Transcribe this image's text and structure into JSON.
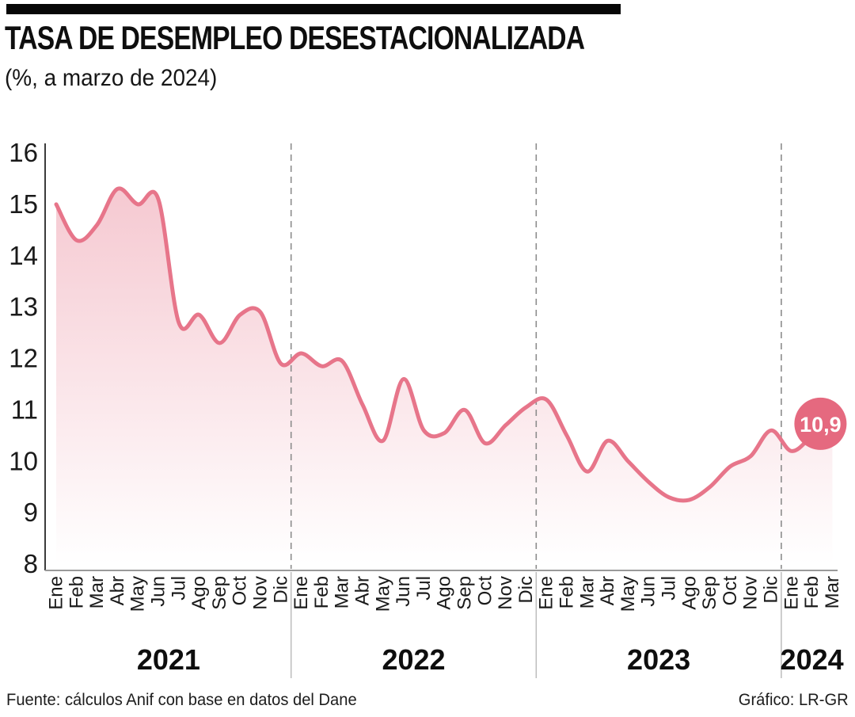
{
  "header": {
    "title": "TASA DE DESEMPLEO DESESTACIONALIZADA",
    "subtitle": "(%, a marzo de 2024)"
  },
  "footer": {
    "source": "Fuente: cálculos Anif con base en datos del Dane",
    "credit": "Gráfico: LR-GR"
  },
  "chart_data": {
    "type": "area",
    "title": "TASA DE DESEMPLEO DESESTACIONALIZADA",
    "unit": "%",
    "xlabel": "",
    "ylabel": "",
    "ylim": [
      8,
      16
    ],
    "yticks": [
      16,
      15,
      14,
      13,
      12,
      11,
      10,
      9,
      8
    ],
    "grid": false,
    "legend": "none",
    "line_color": "#e7758a",
    "badge_color": "#e5697f",
    "dash_color": "#8c8c8c",
    "years": [
      {
        "label": "2021",
        "months": [
          "Ene",
          "Feb",
          "Mar",
          "Abr",
          "May",
          "Jun",
          "Jul",
          "Ago",
          "Sep",
          "Oct",
          "Nov",
          "Dic"
        ],
        "values": [
          15.0,
          14.3,
          14.6,
          15.3,
          15.0,
          15.1,
          12.7,
          12.85,
          12.3,
          12.85,
          12.9,
          11.9
        ]
      },
      {
        "label": "2022",
        "months": [
          "Ene",
          "Feb",
          "Mar",
          "Abr",
          "May",
          "Jun",
          "Jul",
          "Ago",
          "Sep",
          "Oct",
          "Nov",
          "Dic"
        ],
        "values": [
          12.1,
          11.85,
          11.95,
          11.1,
          10.4,
          11.6,
          10.6,
          10.55,
          11.0,
          10.35,
          10.7,
          11.05
        ]
      },
      {
        "label": "2023",
        "months": [
          "Ene",
          "Feb",
          "Mar",
          "Abr",
          "May",
          "Jun",
          "Jul",
          "Ago",
          "Sep",
          "Oct",
          "Nov",
          "Dic"
        ],
        "values": [
          11.2,
          10.5,
          9.8,
          10.4,
          10.0,
          9.6,
          9.3,
          9.25,
          9.5,
          9.9,
          10.1,
          10.6
        ]
      },
      {
        "label": "2024",
        "months": [
          "Ene",
          "Feb",
          "Mar"
        ],
        "values": [
          10.2,
          10.5,
          10.9
        ]
      }
    ],
    "annotation": {
      "label": "10,9",
      "value": 10.9,
      "month": "Mar",
      "year": "2024"
    }
  }
}
